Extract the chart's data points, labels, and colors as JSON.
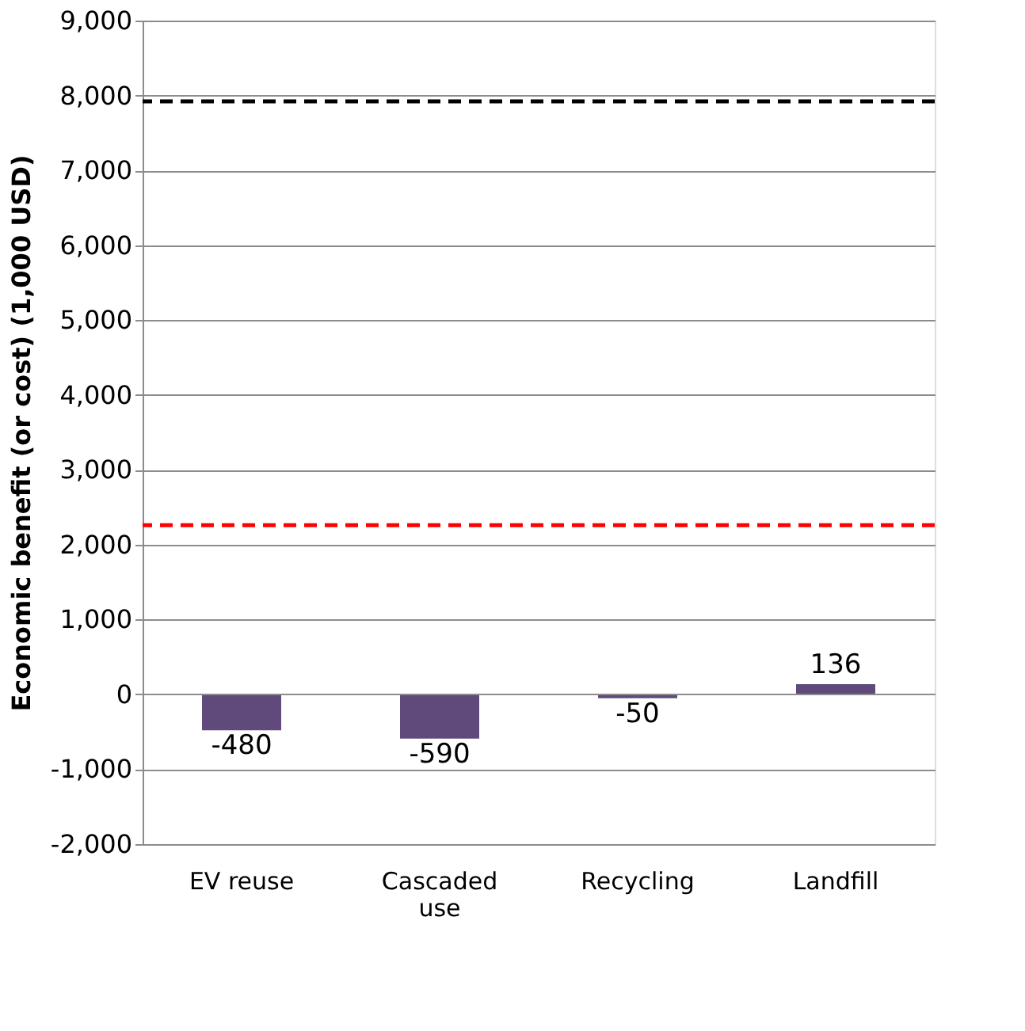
{
  "chart_data": {
    "type": "bar",
    "ylabel": "Economic benefit (or cost) (1,000 USD)",
    "categories": [
      "EV reuse",
      "Cascaded use",
      "Recycling",
      "Landfill"
    ],
    "series": [
      {
        "color": "#604a7b",
        "values": [
          -480,
          -590,
          -50,
          136
        ]
      }
    ],
    "ylim": [
      -2000,
      9000
    ],
    "yticks": [
      {
        "value": -2000,
        "label": "-2,000"
      },
      {
        "value": -1000,
        "label": "-1,000"
      },
      0,
      {
        "value": 1000,
        "label": "1,000"
      },
      {
        "value": 2000,
        "label": "2,000"
      },
      {
        "value": 3000,
        "label": "3,000"
      },
      {
        "value": 4000,
        "label": "4,000"
      },
      {
        "value": 5000,
        "label": "5,000"
      },
      {
        "value": 6000,
        "label": "6,000"
      },
      {
        "value": 7000,
        "label": "7,000"
      },
      {
        "value": 8000,
        "label": "8,000"
      },
      {
        "value": 9000,
        "label": "9,000"
      }
    ],
    "grid": "y",
    "data_labels": true,
    "ref_lines": [
      {
        "axis": "y",
        "value": 7920,
        "color": "#000000",
        "line_style": "dashed"
      },
      {
        "axis": "y",
        "value": 2260,
        "color": "#ff0000",
        "line_style": "dashed"
      }
    ]
  }
}
